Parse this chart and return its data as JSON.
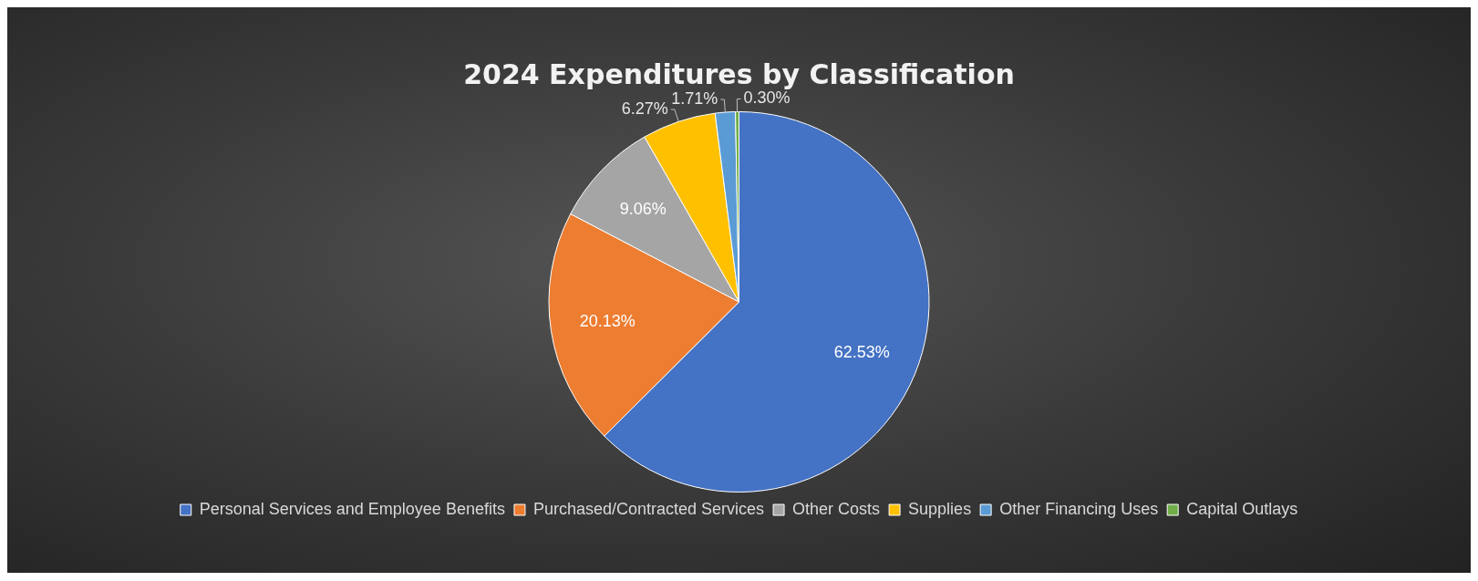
{
  "chart_data": {
    "type": "pie",
    "title": "2024 Expenditures by Classification",
    "categories": [
      "Personal Services and Employee Benefits",
      "Purchased/Contracted Services",
      "Other Costs",
      "Supplies",
      "Other Financing Uses",
      "Capital Outlays"
    ],
    "values": [
      62.53,
      20.13,
      9.06,
      6.27,
      1.71,
      0.3
    ],
    "colors": [
      "#4472c4",
      "#ed7d31",
      "#a5a5a5",
      "#ffc000",
      "#5b9bd5",
      "#70ad47"
    ],
    "data_labels": true,
    "value_labels": [
      "62.53%",
      "20.13%",
      "9.06%",
      "6.27%",
      "1.71%",
      "0.30%"
    ],
    "legend": "bottom"
  }
}
